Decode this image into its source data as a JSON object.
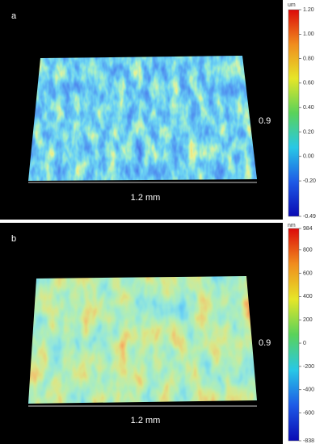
{
  "chart_data": [
    {
      "type": "surface",
      "panel_label": "a",
      "xlabel": "1.2 mm",
      "ylabel": "0.9",
      "colorbar_label": "um",
      "colormap": [
        "#0a0ab4",
        "#1e5ae6",
        "#28c8e6",
        "#5ad25a",
        "#e6e628",
        "#f08c1e",
        "#dc0a0a"
      ],
      "clim": [
        -0.49,
        1.2
      ],
      "cticks": [
        {
          "value": 1.2,
          "label": "1.20"
        },
        {
          "value": 1.0,
          "label": "1.00"
        },
        {
          "value": 0.8,
          "label": "0.80"
        },
        {
          "value": 0.6,
          "label": "0.60"
        },
        {
          "value": 0.4,
          "label": "0.40"
        },
        {
          "value": 0.2,
          "label": "0.20"
        },
        {
          "value": 0,
          "label": "0.00"
        },
        {
          "value": -0.2,
          "label": "-0.20"
        },
        -0.49
      ]
    },
    {
      "type": "surface",
      "panel_label": "b",
      "xlabel": "1.2 mm",
      "ylabel": "0.9",
      "colorbar_label": "nm",
      "colormap": [
        "#0a0ab4",
        "#1e5ae6",
        "#28c8e6",
        "#5ad25a",
        "#e6e628",
        "#f08c1e",
        "#dc0a0a"
      ],
      "clim": [
        -838,
        984
      ],
      "cticks": [
        984,
        800,
        600,
        400,
        200,
        0,
        -200,
        -400,
        -600,
        -838
      ]
    }
  ]
}
